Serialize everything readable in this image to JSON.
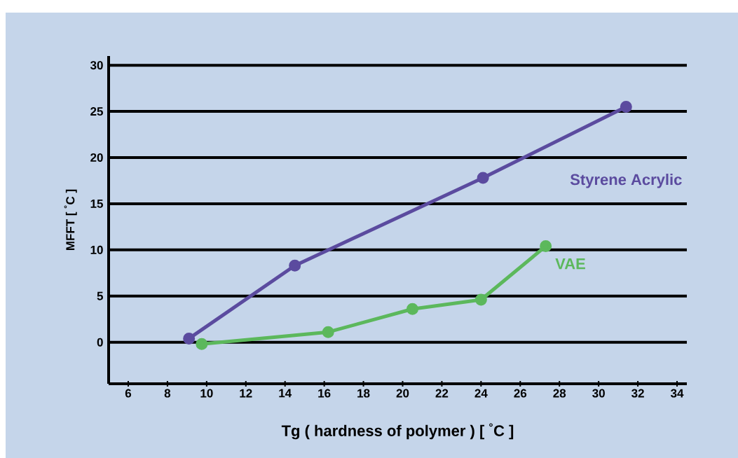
{
  "chart_data": {
    "type": "line",
    "xlabel": "Tg ( hardness of polymer ) [ $^{°}$C ]",
    "ylabel": "MFFT [ $^{°}$C ]",
    "series": [
      {
        "name": "Styrene Acrylic",
        "color": "#5b4b9f",
        "x": [
          9.1,
          14.5,
          24.1,
          31.4
        ],
        "values": [
          0.4,
          8.3,
          17.8,
          25.5
        ]
      },
      {
        "name": "VAE",
        "color": "#5cb85c",
        "x": [
          9.75,
          16.2,
          20.5,
          24.0,
          27.3
        ],
        "values": [
          -0.2,
          1.1,
          3.6,
          4.6,
          10.4
        ]
      }
    ],
    "xlim": [
      5,
      34.5
    ],
    "ylim": [
      -4.5,
      31
    ],
    "xticks": [
      6,
      8,
      10,
      12,
      14,
      16,
      18,
      20,
      22,
      24,
      26,
      28,
      30,
      32,
      34
    ],
    "yticks": [
      0,
      5,
      10,
      15,
      20,
      25,
      30
    ],
    "grid": "y",
    "legend": false,
    "marker": "circle",
    "line_style": "solid"
  }
}
